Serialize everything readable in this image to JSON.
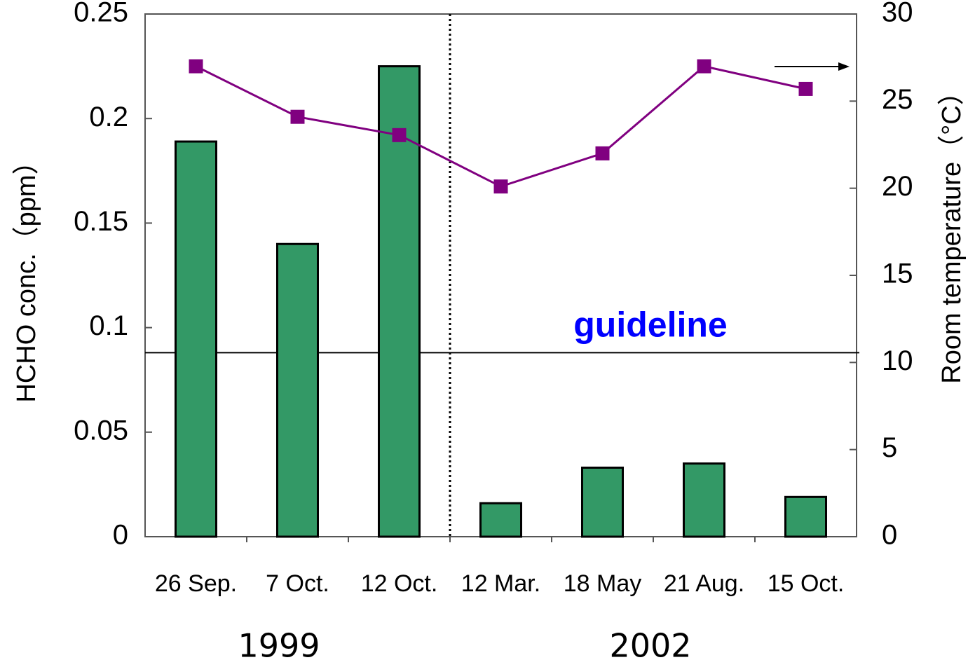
{
  "chart_data": {
    "type": "bar",
    "categories": [
      "26 Sep.",
      "7 Oct.",
      "12 Oct.",
      "12 Mar.",
      "18 May",
      "21 Aug.",
      "15 Oct."
    ],
    "groups": [
      "1999",
      "2002"
    ],
    "series": [
      {
        "type": "bar",
        "color": "#339966",
        "values": [
          0.189,
          0.14,
          0.225,
          0.016,
          0.033,
          0.035,
          0.019
        ]
      },
      {
        "type": "line",
        "axis": "y2",
        "color": "#800080",
        "values": [
          27.0,
          24.1,
          23.05,
          20.1,
          22.0,
          27.0,
          25.7
        ]
      }
    ],
    "ylabel": "HCHO conc.（ppm）",
    "y2label": "Room temperature（°C）",
    "ylim": [
      0,
      0.25
    ],
    "yticks": [
      0,
      0.05,
      0.1,
      0.15,
      0.2,
      0.25
    ],
    "y2lim": [
      0,
      30
    ],
    "y2ticks": [
      0,
      5,
      10,
      15,
      20,
      25,
      30
    ],
    "annotations": [
      {
        "text": "guideline",
        "value": 0.088,
        "color": "#0000ff"
      }
    ]
  }
}
